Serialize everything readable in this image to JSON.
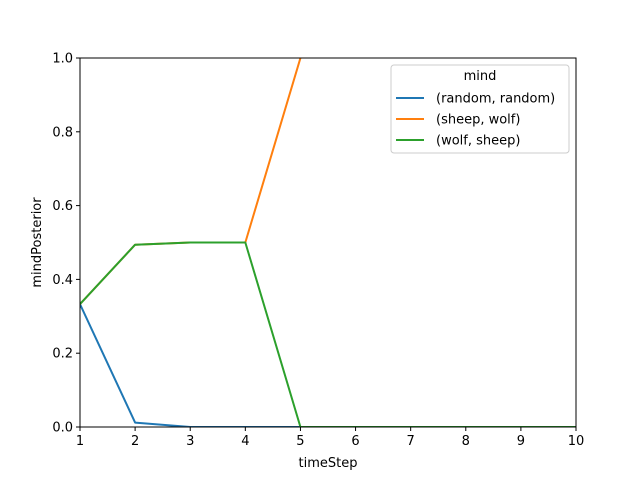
{
  "chart_data": {
    "type": "line",
    "title": "",
    "xlabel": "timeStep",
    "ylabel": "mindPosterior",
    "x": [
      1,
      2,
      3,
      4,
      5,
      6,
      7,
      8,
      9,
      10
    ],
    "xlim": [
      1,
      10
    ],
    "ylim": [
      0,
      1
    ],
    "xticks": [
      "1",
      "2",
      "3",
      "4",
      "5",
      "6",
      "7",
      "8",
      "9",
      "10"
    ],
    "yticks": [
      "0.0",
      "0.2",
      "0.4",
      "0.6",
      "0.8",
      "1.0"
    ],
    "grid": false,
    "legend": {
      "title": "mind",
      "position": "upper-right"
    },
    "series": [
      {
        "name": "(random, random)",
        "color": "#1f77b4",
        "values": [
          0.333,
          0.012,
          0.0,
          0.0,
          0.0,
          0.0,
          0.0,
          0.0,
          0.0,
          0.0
        ]
      },
      {
        "name": "(sheep, wolf)",
        "color": "#ff7f0e",
        "values": [
          0.333,
          0.494,
          0.5,
          0.5,
          1.0,
          null,
          null,
          null,
          null,
          null
        ]
      },
      {
        "name": "(wolf, sheep)",
        "color": "#2ca02c",
        "values": [
          0.333,
          0.494,
          0.5,
          0.5,
          0.0,
          0.0,
          0.0,
          0.0,
          0.0,
          0.0
        ]
      }
    ]
  }
}
